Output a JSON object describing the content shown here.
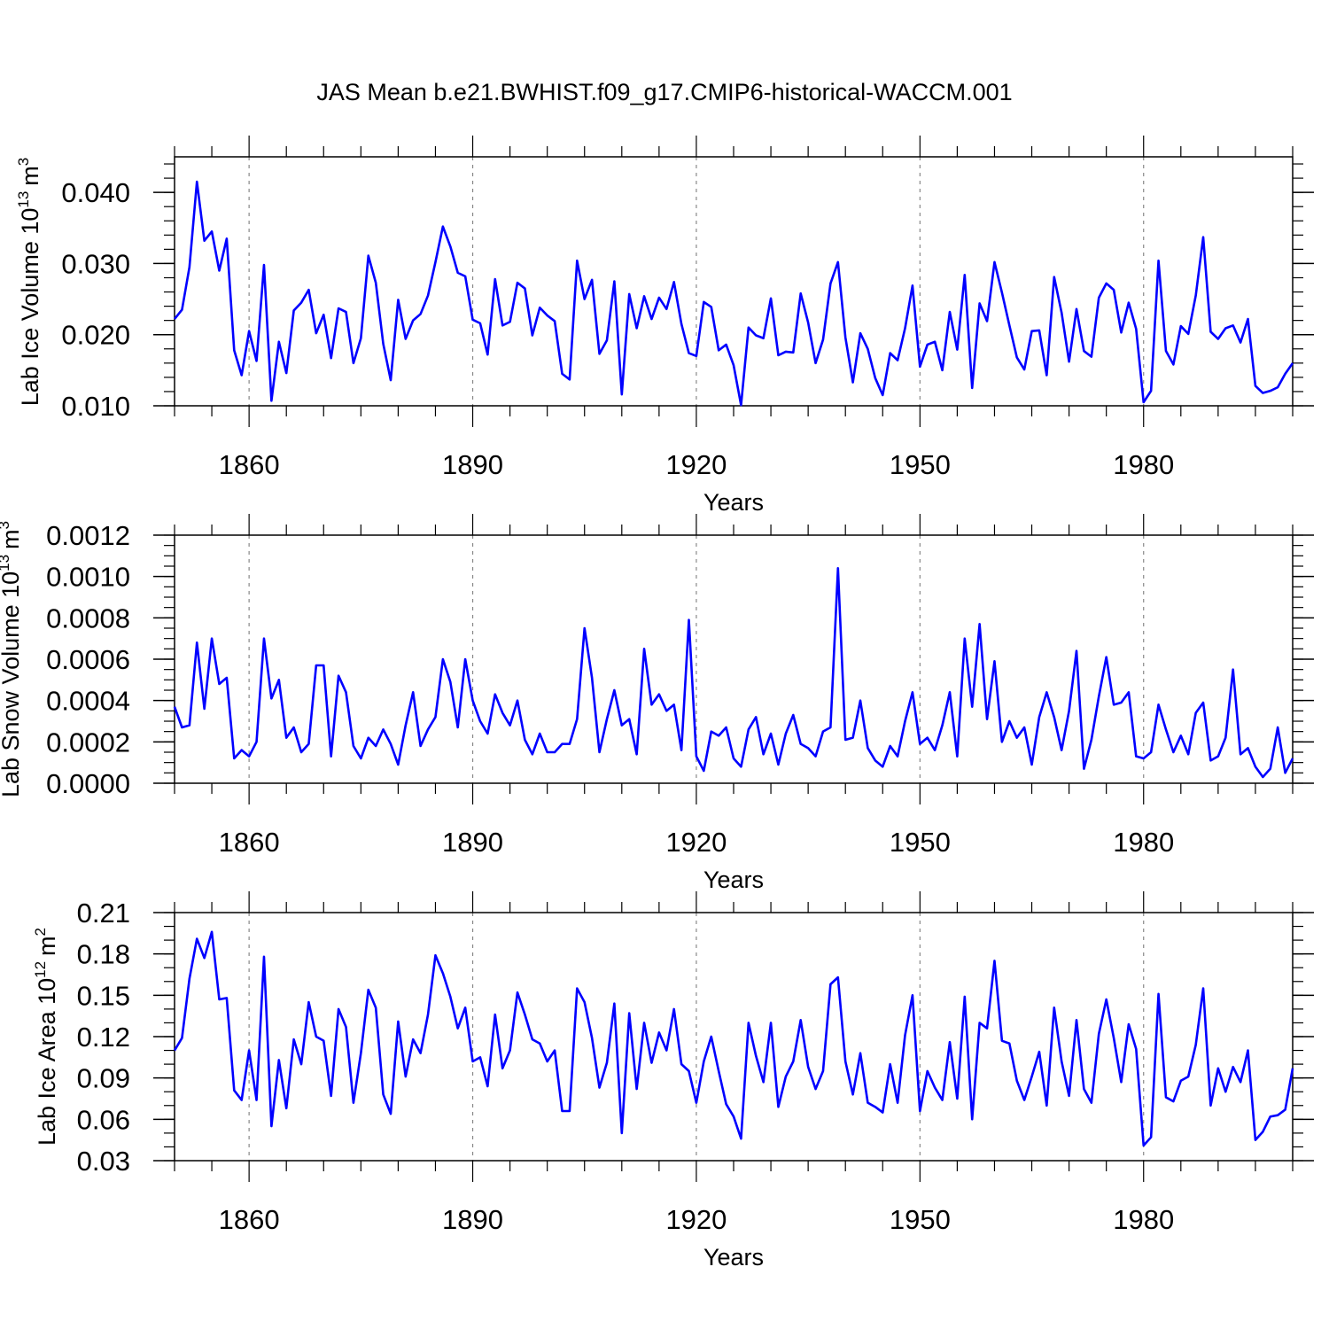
{
  "title": "JAS Mean b.e21.BWHIST.f09_g17.CMIP6-historical-WACCM.001",
  "line_color": "#0000ff",
  "chart_data": [
    {
      "type": "line",
      "ylabel_main": "Lab Ice Volume 10",
      "ylabel_exp": "13",
      "ylabel_unit": "m",
      "ylabel_unit_exp": "3",
      "xlabel": "Years",
      "xlim": [
        1850,
        2000
      ],
      "ylim": [
        0.01,
        0.045
      ],
      "x_ticks": [
        1860,
        1890,
        1920,
        1950,
        1980
      ],
      "x_tick_labels": [
        "1860",
        "1890",
        "1920",
        "1950",
        "1980"
      ],
      "y_ticks": [
        0.01,
        0.02,
        0.03,
        0.04
      ],
      "y_tick_labels": [
        "0.010",
        "0.020",
        "0.030",
        "0.040"
      ],
      "y_minor_step": 0.002,
      "x_start": 1850,
      "values": [
        0.0222,
        0.0235,
        0.0295,
        0.0415,
        0.0332,
        0.0345,
        0.029,
        0.0335,
        0.0178,
        0.0143,
        0.0205,
        0.0163,
        0.0298,
        0.0107,
        0.019,
        0.0146,
        0.0234,
        0.0245,
        0.0263,
        0.0202,
        0.0228,
        0.0167,
        0.0237,
        0.0232,
        0.016,
        0.0195,
        0.0311,
        0.0273,
        0.0187,
        0.0136,
        0.0249,
        0.0194,
        0.022,
        0.0229,
        0.0255,
        0.0302,
        0.0352,
        0.0324,
        0.0287,
        0.0282,
        0.0221,
        0.0216,
        0.0172,
        0.0278,
        0.0213,
        0.0218,
        0.0273,
        0.0265,
        0.0199,
        0.0238,
        0.0227,
        0.0219,
        0.0145,
        0.0137,
        0.0304,
        0.025,
        0.0277,
        0.0173,
        0.0192,
        0.0275,
        0.0116,
        0.0257,
        0.0209,
        0.0254,
        0.0222,
        0.0252,
        0.0236,
        0.0274,
        0.0215,
        0.0174,
        0.017,
        0.0246,
        0.0239,
        0.0178,
        0.0186,
        0.0157,
        0.0101,
        0.021,
        0.0199,
        0.0195,
        0.0251,
        0.0171,
        0.0176,
        0.0175,
        0.0258,
        0.0217,
        0.016,
        0.0193,
        0.0272,
        0.0302,
        0.0196,
        0.0133,
        0.0202,
        0.018,
        0.0139,
        0.0115,
        0.0174,
        0.0164,
        0.0209,
        0.0269,
        0.0155,
        0.0186,
        0.019,
        0.015,
        0.0232,
        0.0179,
        0.0284,
        0.0125,
        0.0244,
        0.0219,
        0.0302,
        0.0259,
        0.0213,
        0.0168,
        0.0151,
        0.0205,
        0.0206,
        0.0143,
        0.0281,
        0.0231,
        0.0162,
        0.0236,
        0.0177,
        0.0169,
        0.0252,
        0.0272,
        0.0263,
        0.0203,
        0.0245,
        0.0208,
        0.0105,
        0.0121,
        0.0304,
        0.0177,
        0.0158,
        0.0212,
        0.0201,
        0.0255,
        0.0337,
        0.0204,
        0.0194,
        0.0209,
        0.0213,
        0.0189,
        0.0222,
        0.0128,
        0.0118,
        0.0121,
        0.0126,
        0.0145,
        0.016
      ]
    },
    {
      "type": "line",
      "ylabel_main": "Lab Snow Volume 10",
      "ylabel_exp": "13",
      "ylabel_unit": "m",
      "ylabel_unit_exp": "3",
      "xlabel": "Years",
      "xlim": [
        1850,
        2000
      ],
      "ylim": [
        0.0,
        0.0012
      ],
      "x_ticks": [
        1860,
        1890,
        1920,
        1950,
        1980
      ],
      "x_tick_labels": [
        "1860",
        "1890",
        "1920",
        "1950",
        "1980"
      ],
      "y_ticks": [
        0.0,
        0.0002,
        0.0004,
        0.0006,
        0.0008,
        0.001,
        0.0012
      ],
      "y_tick_labels": [
        "0.0000",
        "0.0002",
        "0.0004",
        "0.0006",
        "0.0008",
        "0.0010",
        "0.0012"
      ],
      "y_minor_step": 5e-05,
      "x_start": 1850,
      "values": [
        0.00037,
        0.00027,
        0.00028,
        0.00068,
        0.00036,
        0.0007,
        0.00048,
        0.00051,
        0.00012,
        0.00016,
        0.00013,
        0.0002,
        0.0007,
        0.00041,
        0.0005,
        0.00022,
        0.00027,
        0.00015,
        0.00019,
        0.00057,
        0.00057,
        0.00013,
        0.00052,
        0.00044,
        0.00018,
        0.00012,
        0.00022,
        0.00018,
        0.00026,
        0.00019,
        9e-05,
        0.00028,
        0.00044,
        0.00018,
        0.00026,
        0.00032,
        0.0006,
        0.00049,
        0.00027,
        0.0006,
        0.0004,
        0.0003,
        0.00024,
        0.00043,
        0.00034,
        0.00028,
        0.0004,
        0.00021,
        0.00014,
        0.00024,
        0.00015,
        0.00015,
        0.00019,
        0.00019,
        0.00031,
        0.00075,
        0.00051,
        0.00015,
        0.00031,
        0.00045,
        0.00028,
        0.00031,
        0.00014,
        0.00065,
        0.00038,
        0.00043,
        0.00035,
        0.00038,
        0.00016,
        0.00079,
        0.00013,
        6e-05,
        0.00025,
        0.00023,
        0.00027,
        0.00012,
        8e-05,
        0.00026,
        0.00032,
        0.00014,
        0.00024,
        9e-05,
        0.00024,
        0.00033,
        0.00019,
        0.00017,
        0.00013,
        0.00025,
        0.00027,
        0.00104,
        0.00021,
        0.00022,
        0.0004,
        0.00017,
        0.00011,
        8e-05,
        0.00018,
        0.00013,
        0.0003,
        0.00044,
        0.00019,
        0.00022,
        0.00016,
        0.00028,
        0.00044,
        0.00013,
        0.0007,
        0.00037,
        0.00077,
        0.00031,
        0.00059,
        0.0002,
        0.0003,
        0.00022,
        0.00027,
        9e-05,
        0.00032,
        0.00044,
        0.00032,
        0.00016,
        0.00035,
        0.00064,
        7e-05,
        0.00021,
        0.00042,
        0.00061,
        0.00038,
        0.00039,
        0.00044,
        0.00013,
        0.00012,
        0.00015,
        0.00038,
        0.00026,
        0.00015,
        0.00023,
        0.00014,
        0.00034,
        0.00039,
        0.00011,
        0.00013,
        0.00022,
        0.00055,
        0.00014,
        0.00017,
        8e-05,
        3e-05,
        7e-05,
        0.00027,
        5e-05,
        0.00012
      ]
    },
    {
      "type": "line",
      "ylabel_main": "Lab Ice Area 10",
      "ylabel_exp": "12",
      "ylabel_unit": "m",
      "ylabel_unit_exp": "2",
      "xlabel": "Years",
      "xlim": [
        1850,
        2000
      ],
      "ylim": [
        0.03,
        0.21
      ],
      "x_ticks": [
        1860,
        1890,
        1920,
        1950,
        1980
      ],
      "x_tick_labels": [
        "1860",
        "1890",
        "1920",
        "1950",
        "1980"
      ],
      "y_ticks": [
        0.03,
        0.06,
        0.09,
        0.12,
        0.15,
        0.18,
        0.21
      ],
      "y_tick_labels": [
        "0.03",
        "0.06",
        "0.09",
        "0.12",
        "0.15",
        "0.18",
        "0.21"
      ],
      "y_minor_step": 0.01,
      "x_start": 1850,
      "values": [
        0.11,
        0.119,
        0.162,
        0.191,
        0.177,
        0.196,
        0.147,
        0.148,
        0.081,
        0.074,
        0.11,
        0.074,
        0.178,
        0.055,
        0.103,
        0.068,
        0.118,
        0.1,
        0.145,
        0.12,
        0.117,
        0.077,
        0.14,
        0.127,
        0.072,
        0.108,
        0.154,
        0.141,
        0.078,
        0.064,
        0.131,
        0.091,
        0.118,
        0.108,
        0.136,
        0.179,
        0.166,
        0.149,
        0.126,
        0.141,
        0.102,
        0.105,
        0.084,
        0.136,
        0.097,
        0.11,
        0.152,
        0.136,
        0.118,
        0.115,
        0.102,
        0.11,
        0.066,
        0.066,
        0.155,
        0.145,
        0.119,
        0.083,
        0.101,
        0.144,
        0.05,
        0.137,
        0.082,
        0.13,
        0.101,
        0.123,
        0.11,
        0.14,
        0.1,
        0.095,
        0.072,
        0.102,
        0.12,
        0.095,
        0.071,
        0.062,
        0.046,
        0.13,
        0.106,
        0.087,
        0.13,
        0.069,
        0.091,
        0.102,
        0.132,
        0.098,
        0.082,
        0.095,
        0.158,
        0.163,
        0.102,
        0.078,
        0.108,
        0.072,
        0.069,
        0.065,
        0.1,
        0.072,
        0.121,
        0.15,
        0.066,
        0.095,
        0.083,
        0.074,
        0.116,
        0.075,
        0.149,
        0.06,
        0.13,
        0.126,
        0.175,
        0.117,
        0.115,
        0.088,
        0.074,
        0.091,
        0.109,
        0.07,
        0.141,
        0.102,
        0.077,
        0.132,
        0.082,
        0.072,
        0.122,
        0.147,
        0.119,
        0.087,
        0.129,
        0.111,
        0.041,
        0.047,
        0.151,
        0.076,
        0.073,
        0.088,
        0.091,
        0.114,
        0.155,
        0.07,
        0.097,
        0.08,
        0.098,
        0.087,
        0.11,
        0.045,
        0.051,
        0.062,
        0.063,
        0.067,
        0.097
      ]
    }
  ]
}
